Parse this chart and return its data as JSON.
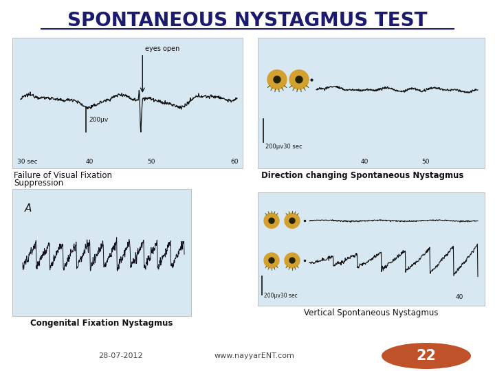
{
  "title": "SPONTANEOUS NYSTAGMUS TEST",
  "title_fontsize": 20,
  "background_color": "#ffffff",
  "image1_label_line1": "Failure of Visual Fixation",
  "image1_label_line2": "Suppression",
  "image2_label": "Direction changing Spontaneous Nystagmus",
  "image3_label": "Congenital Fixation Nystagmus",
  "image4_label": "Vertical Spontaneous Nystagmus",
  "footer_date": "28-07-2012",
  "footer_website": "www.nayyarENT.com",
  "footer_number": "22",
  "footer_number_bg": "#c0522a",
  "img_bg": "#d8e8f2",
  "label_fontsize": 8.5,
  "footer_fontsize": 8
}
